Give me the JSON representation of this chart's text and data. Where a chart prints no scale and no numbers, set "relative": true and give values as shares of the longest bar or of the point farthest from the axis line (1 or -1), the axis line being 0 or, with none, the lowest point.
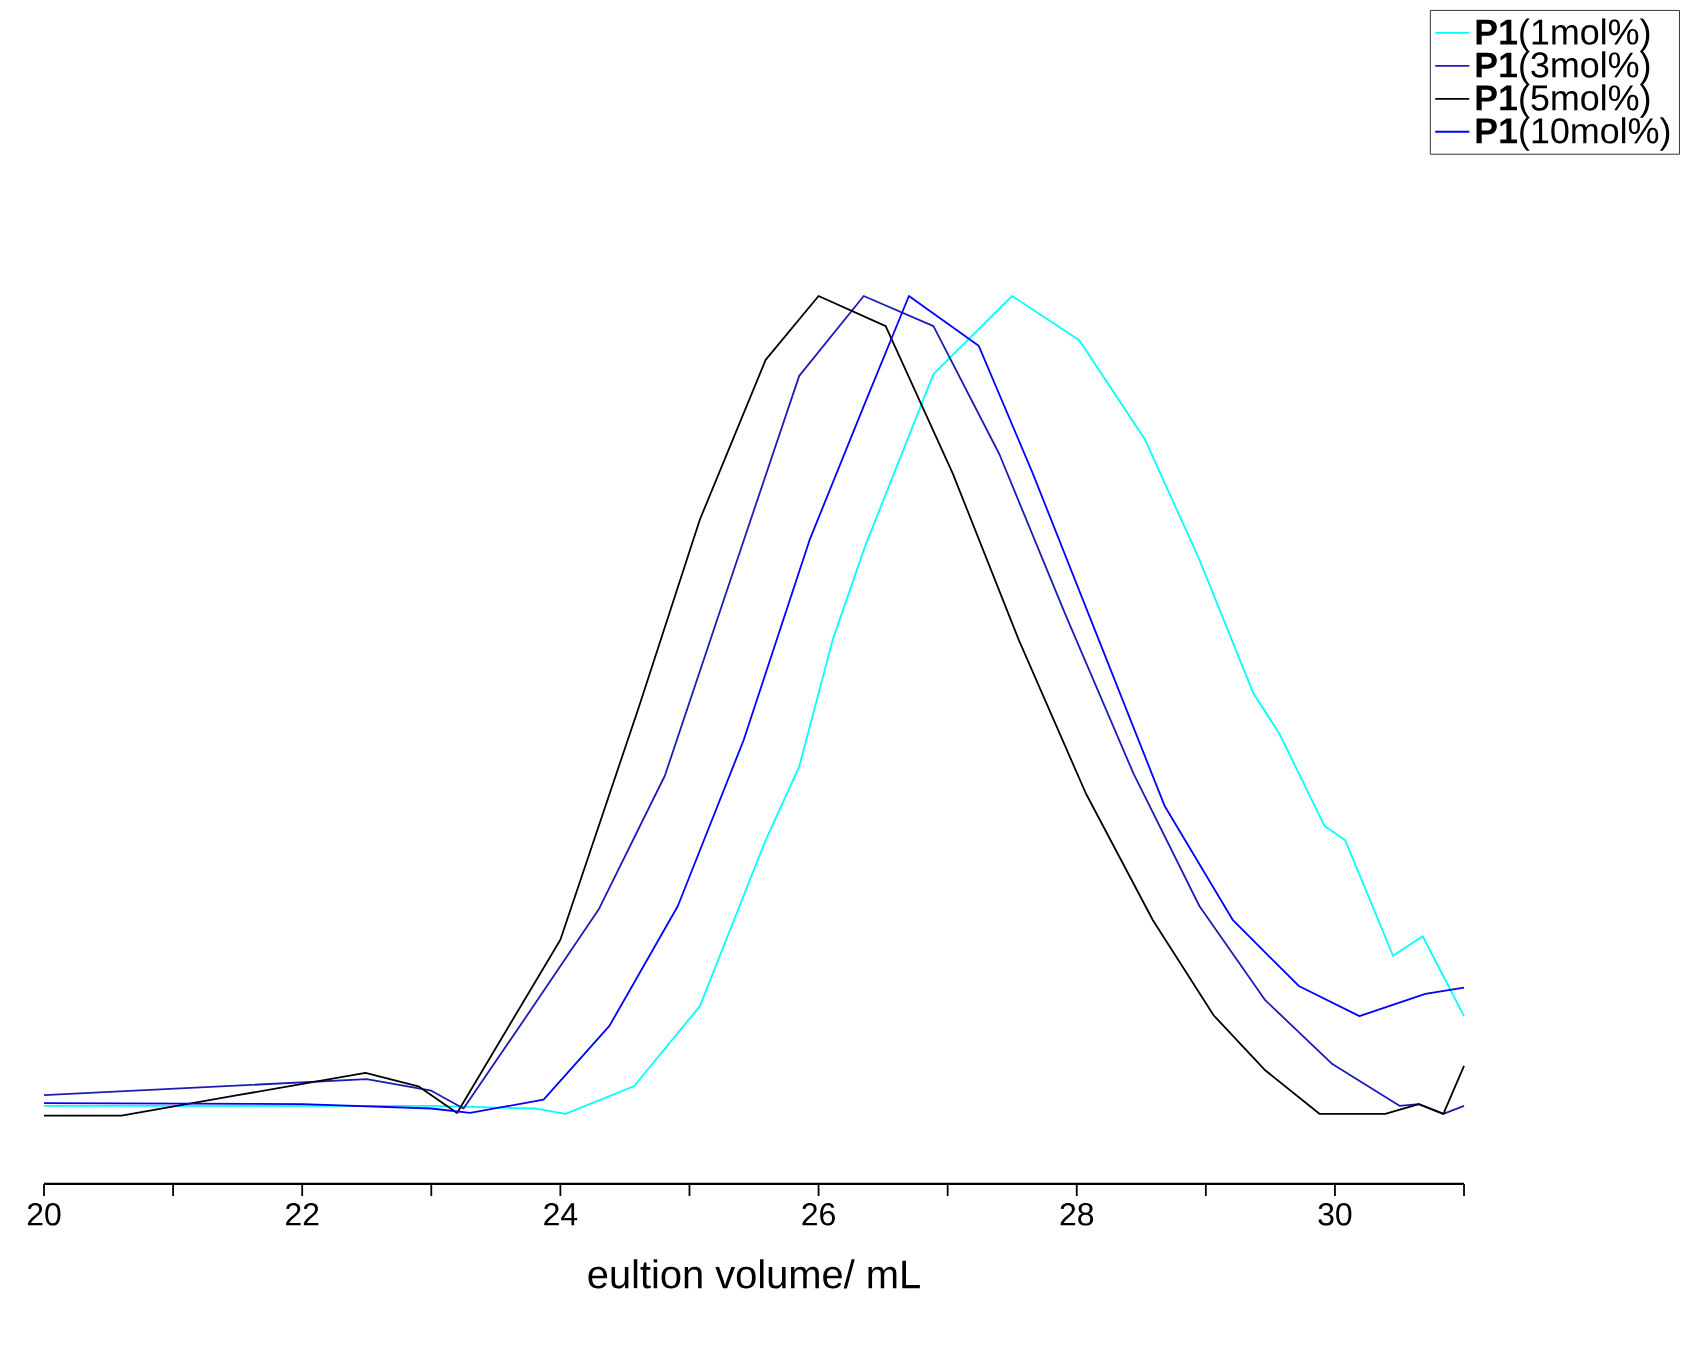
{
  "chart_data": {
    "type": "line",
    "relative": true,
    "xlabel": "eultion volume/ mL",
    "xlim": [
      20,
      31
    ],
    "xticks": [
      20,
      {
        "value": 21,
        "label": null
      },
      22,
      {
        "value": 23,
        "label": null
      },
      24,
      {
        "value": 25,
        "label": null
      },
      26,
      {
        "value": 27,
        "label": null
      },
      28,
      {
        "value": 29,
        "label": null
      },
      30,
      {
        "value": 31,
        "label": null
      }
    ],
    "legend": "top right",
    "grid": false,
    "marker": "none",
    "line_style": "solid",
    "series": [
      {
        "name": "**P1**(1mol%)",
        "color": "#00ffff",
        "x": [
          20,
          23,
          23.8,
          24.04,
          24.57,
          25.08,
          25.59,
          25.85,
          26.11,
          26.36,
          26.89,
          27.5,
          28.02,
          28.53,
          28.95,
          29.37,
          29.57,
          29.92,
          30.08,
          30.45,
          30.68,
          31
        ],
        "values": [
          0.088,
          0.088,
          0.085,
          0.079,
          0.11,
          0.2,
          0.387,
          0.47,
          0.613,
          0.718,
          0.912,
          1.0,
          0.95,
          0.838,
          0.703,
          0.552,
          0.507,
          0.403,
          0.387,
          0.257,
          0.279,
          0.189
        ]
      },
      {
        "name": "**P1**(3mol%)",
        "color": "#1c1cb4",
        "x": [
          20,
          22.5,
          23.0,
          23.25,
          23.79,
          24.3,
          24.81,
          25.34,
          25.85,
          26.35,
          26.89,
          27.4,
          27.91,
          28.44,
          28.95,
          29.46,
          29.98,
          30.5,
          30.65,
          30.84,
          31
        ],
        "values": [
          0.1,
          0.118,
          0.105,
          0.085,
          0.2,
          0.31,
          0.46,
          0.69,
          0.91,
          1.0,
          0.966,
          0.822,
          0.642,
          0.462,
          0.313,
          0.207,
          0.135,
          0.088,
          0.09,
          0.079,
          0.088
        ]
      },
      {
        "name": "**P1**(5mol%)",
        "color": "#000000",
        "x": [
          20,
          20.6,
          21.5,
          22.49,
          22.9,
          23.2,
          24.0,
          24.61,
          25.08,
          25.59,
          26.0,
          26.52,
          27.04,
          27.55,
          28.07,
          28.59,
          29.06,
          29.46,
          29.88,
          30.39,
          30.65,
          30.84,
          31
        ],
        "values": [
          0.077,
          0.077,
          0.1,
          0.125,
          0.11,
          0.08,
          0.275,
          0.538,
          0.748,
          0.928,
          1.0,
          0.966,
          0.8,
          0.613,
          0.44,
          0.297,
          0.19,
          0.128,
          0.079,
          0.079,
          0.09,
          0.079,
          0.133
        ]
      },
      {
        "name": "**P1**(10mol%)",
        "color": "#0000ff",
        "x": [
          20,
          22,
          23.0,
          23.3,
          23.87,
          24.38,
          24.91,
          25.42,
          25.93,
          26.35,
          26.7,
          27.24,
          27.66,
          28.17,
          28.68,
          29.21,
          29.72,
          30.19,
          30.7,
          31
        ],
        "values": [
          0.091,
          0.09,
          0.085,
          0.08,
          0.095,
          0.178,
          0.313,
          0.5,
          0.725,
          0.876,
          1.0,
          0.944,
          0.8,
          0.613,
          0.426,
          0.297,
          0.223,
          0.189,
          0.214,
          0.221
        ]
      }
    ]
  }
}
